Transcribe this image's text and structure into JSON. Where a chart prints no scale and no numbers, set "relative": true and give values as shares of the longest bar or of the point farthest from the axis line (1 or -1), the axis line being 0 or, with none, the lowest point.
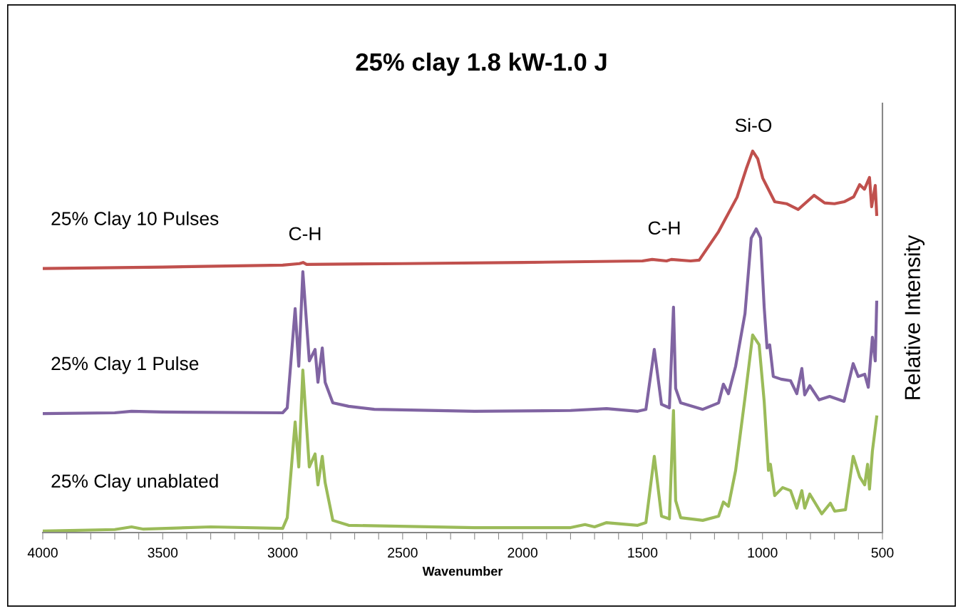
{
  "chart_data": {
    "type": "line",
    "title": "25% clay 1.8 kW-1.0 J",
    "xlabel": "Wavenumber",
    "ylabel": "Relative Intensity",
    "relative": true,
    "legend": false,
    "grid": false,
    "marker": "none",
    "line_style": "solid",
    "xlim": [
      4000,
      500
    ],
    "xticks": [
      4000,
      {
        "value": 3900,
        "label": null
      },
      {
        "value": 3800,
        "label": null
      },
      {
        "value": 3700,
        "label": null
      },
      {
        "value": 3600,
        "label": null
      },
      3500,
      {
        "value": 3400,
        "label": null
      },
      {
        "value": 3300,
        "label": null
      },
      {
        "value": 3200,
        "label": null
      },
      {
        "value": 3100,
        "label": null
      },
      3000,
      {
        "value": 2900,
        "label": null
      },
      {
        "value": 2800,
        "label": null
      },
      {
        "value": 2700,
        "label": null
      },
      {
        "value": 2600,
        "label": null
      },
      2500,
      {
        "value": 2400,
        "label": null
      },
      {
        "value": 2300,
        "label": null
      },
      {
        "value": 2200,
        "label": null
      },
      {
        "value": 2100,
        "label": null
      },
      2000,
      {
        "value": 1900,
        "label": null
      },
      {
        "value": 1800,
        "label": null
      },
      {
        "value": 1700,
        "label": null
      },
      {
        "value": 1600,
        "label": null
      },
      1500,
      {
        "value": 1400,
        "label": null
      },
      {
        "value": 1300,
        "label": null
      },
      {
        "value": 1200,
        "label": null
      },
      {
        "value": 1100,
        "label": null
      },
      1000,
      {
        "value": 900,
        "label": null
      },
      {
        "value": 800,
        "label": null
      },
      {
        "value": 700,
        "label": null
      },
      {
        "value": 600,
        "label": null
      },
      500
    ],
    "annotations": [
      "C-H",
      "C-H",
      "Si-O"
    ],
    "series": [
      {
        "name": "25% Clay 10 Pulses",
        "color": "#c0504d",
        "x": [
          4000,
          3500,
          3000,
          2930,
          2915,
          2900,
          2500,
          2000,
          1500,
          1460,
          1400,
          1380,
          1300,
          1264,
          1183,
          1106,
          1068,
          1041,
          1020,
          999,
          949,
          900,
          851,
          785,
          741,
          700,
          660,
          620,
          595,
          575,
          554,
          545,
          530,
          524
        ],
        "values": [
          0.692,
          0.696,
          0.701,
          0.705,
          0.708,
          0.703,
          0.705,
          0.708,
          0.712,
          0.716,
          0.712,
          0.716,
          0.712,
          0.714,
          0.789,
          0.879,
          0.953,
          1.0,
          0.98,
          0.929,
          0.867,
          0.862,
          0.847,
          0.884,
          0.864,
          0.862,
          0.867,
          0.88,
          0.912,
          0.9,
          0.931,
          0.854,
          0.91,
          0.834
        ]
      },
      {
        "name": "25% Clay 1 Pulse",
        "color": "#8064a2",
        "x": [
          4000,
          3700,
          3630,
          3500,
          3000,
          2981,
          2948,
          2933,
          2916,
          2889,
          2865,
          2853,
          2835,
          2823,
          2791,
          2725,
          2618,
          2200,
          1800,
          1650,
          1520,
          1486,
          1451,
          1421,
          1388,
          1371,
          1362,
          1341,
          1249,
          1183,
          1163,
          1142,
          1112,
          1073,
          1047,
          1026,
          1008,
          993,
          981,
          970,
          955,
          922,
          883,
          857,
          836,
          824,
          803,
          764,
          720,
          660,
          622,
          601,
          574,
          559,
          542,
          530,
          524
        ],
        "values": [
          0.312,
          0.314,
          0.318,
          0.316,
          0.314,
          0.327,
          0.587,
          0.436,
          0.684,
          0.45,
          0.48,
          0.394,
          0.484,
          0.394,
          0.34,
          0.331,
          0.323,
          0.318,
          0.32,
          0.325,
          0.318,
          0.323,
          0.48,
          0.336,
          0.327,
          0.591,
          0.378,
          0.34,
          0.323,
          0.34,
          0.389,
          0.364,
          0.436,
          0.574,
          0.772,
          0.796,
          0.772,
          0.591,
          0.484,
          0.492,
          0.409,
          0.402,
          0.398,
          0.364,
          0.43,
          0.361,
          0.385,
          0.348,
          0.357,
          0.344,
          0.443,
          0.409,
          0.415,
          0.381,
          0.512,
          0.45,
          0.604
        ]
      },
      {
        "name": "25% Clay unablated",
        "color": "#9bbb59",
        "x": [
          4000,
          3700,
          3630,
          3580,
          3300,
          3000,
          2981,
          2948,
          2933,
          2916,
          2889,
          2865,
          2853,
          2835,
          2823,
          2791,
          2725,
          2200,
          1800,
          1740,
          1700,
          1650,
          1520,
          1486,
          1451,
          1421,
          1388,
          1371,
          1362,
          1341,
          1249,
          1183,
          1163,
          1142,
          1112,
          1073,
          1041,
          1014,
          993,
          975,
          967,
          949,
          916,
          883,
          857,
          836,
          824,
          803,
          753,
          717,
          699,
          654,
          622,
          595,
          574,
          562,
          554,
          542,
          524
        ],
        "values": [
          0.004,
          0.008,
          0.015,
          0.009,
          0.015,
          0.011,
          0.039,
          0.29,
          0.172,
          0.426,
          0.172,
          0.206,
          0.125,
          0.2,
          0.131,
          0.032,
          0.019,
          0.013,
          0.013,
          0.021,
          0.015,
          0.026,
          0.019,
          0.026,
          0.2,
          0.043,
          0.036,
          0.32,
          0.084,
          0.039,
          0.032,
          0.043,
          0.08,
          0.069,
          0.163,
          0.353,
          0.518,
          0.492,
          0.344,
          0.163,
          0.179,
          0.097,
          0.118,
          0.11,
          0.064,
          0.11,
          0.064,
          0.101,
          0.049,
          0.077,
          0.056,
          0.06,
          0.2,
          0.146,
          0.125,
          0.179,
          0.114,
          0.213,
          0.303
        ]
      }
    ]
  }
}
